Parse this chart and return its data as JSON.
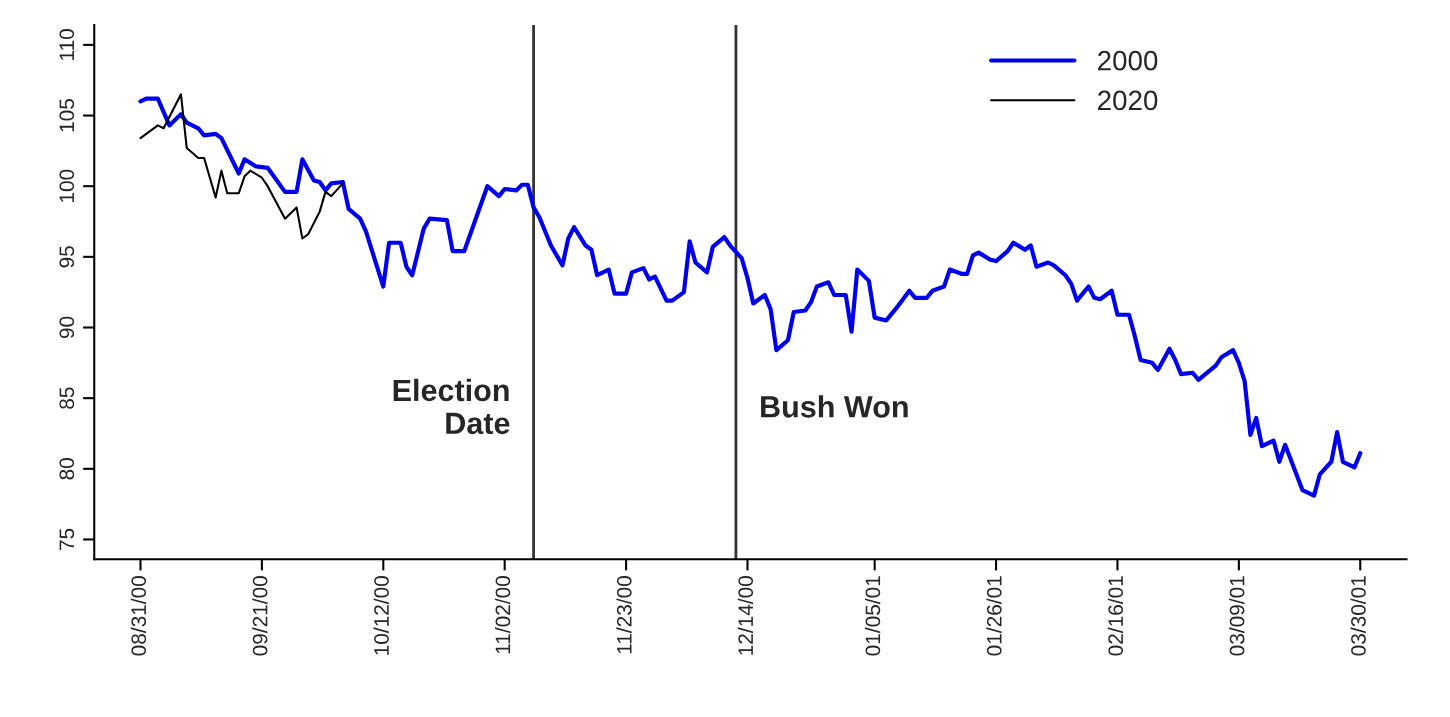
{
  "chart_data": {
    "type": "line",
    "series": [
      {
        "name": "2000",
        "color": "#0000ee",
        "x": [
          "2000-08-31",
          "2000-09-01",
          "2000-09-03",
          "2000-09-05",
          "2000-09-07",
          "2000-09-08",
          "2000-09-10",
          "2000-09-11",
          "2000-09-13",
          "2000-09-14",
          "2000-09-17",
          "2000-09-18",
          "2000-09-20",
          "2000-09-22",
          "2000-09-25",
          "2000-09-27",
          "2000-09-28",
          "2000-09-30",
          "2000-10-01",
          "2000-10-02",
          "2000-10-03",
          "2000-10-05",
          "2000-10-06",
          "2000-10-08",
          "2000-10-09",
          "2000-10-12",
          "2000-10-13",
          "2000-10-15",
          "2000-10-16",
          "2000-10-17",
          "2000-10-19",
          "2000-10-20",
          "2000-10-23",
          "2000-10-24",
          "2000-10-26",
          "2000-10-28",
          "2000-10-30",
          "2000-11-01",
          "2000-11-02",
          "2000-11-04",
          "2000-11-05",
          "2000-11-06",
          "2000-11-07",
          "2000-11-08",
          "2000-11-10",
          "2000-11-12",
          "2000-11-13",
          "2000-11-14",
          "2000-11-16",
          "2000-11-17",
          "2000-11-18",
          "2000-11-20",
          "2000-11-21",
          "2000-11-23",
          "2000-11-24",
          "2000-11-26",
          "2000-11-27",
          "2000-11-28",
          "2000-11-30",
          "2000-12-01",
          "2000-12-03",
          "2000-12-04",
          "2000-12-05",
          "2000-12-07",
          "2000-12-08",
          "2000-12-10",
          "2000-12-11",
          "2000-12-13",
          "2000-12-14",
          "2000-12-15",
          "2000-12-17",
          "2000-12-18",
          "2000-12-19",
          "2000-12-21",
          "2000-12-22",
          "2000-12-24",
          "2000-12-25",
          "2000-12-26",
          "2000-12-28",
          "2000-12-29",
          "2000-12-31",
          "2001-01-01",
          "2001-01-02",
          "2001-01-04",
          "2001-01-05",
          "2001-01-07",
          "2001-01-09",
          "2001-01-11",
          "2001-01-12",
          "2001-01-14",
          "2001-01-15",
          "2001-01-17",
          "2001-01-18",
          "2001-01-20",
          "2001-01-21",
          "2001-01-22",
          "2001-01-23",
          "2001-01-25",
          "2001-01-26",
          "2001-01-28",
          "2001-01-29",
          "2001-01-31",
          "2001-02-01",
          "2001-02-02",
          "2001-02-04",
          "2001-02-05",
          "2001-02-07",
          "2001-02-08",
          "2001-02-09",
          "2001-02-11",
          "2001-02-12",
          "2001-02-13",
          "2001-02-15",
          "2001-02-16",
          "2001-02-18",
          "2001-02-19",
          "2001-02-20",
          "2001-02-22",
          "2001-02-23",
          "2001-02-25",
          "2001-02-26",
          "2001-02-27",
          "2001-03-01",
          "2001-03-02",
          "2001-03-05",
          "2001-03-06",
          "2001-03-08",
          "2001-03-09",
          "2001-03-10",
          "2001-03-11",
          "2001-03-12",
          "2001-03-13",
          "2001-03-15",
          "2001-03-16",
          "2001-03-17",
          "2001-03-20",
          "2001-03-22",
          "2001-03-23",
          "2001-03-25",
          "2001-03-26",
          "2001-03-27",
          "2001-03-29",
          "2001-03-30"
        ],
        "values": [
          106.0,
          106.2,
          106.2,
          104.3,
          105.1,
          104.5,
          104.1,
          103.6,
          103.7,
          103.4,
          100.9,
          101.9,
          101.4,
          101.3,
          99.6,
          99.6,
          101.9,
          100.4,
          100.3,
          99.7,
          100.2,
          100.3,
          98.4,
          97.7,
          96.8,
          92.9,
          96.0,
          96.0,
          94.3,
          93.7,
          97.0,
          97.7,
          97.6,
          95.4,
          95.4,
          97.7,
          100.0,
          99.3,
          99.8,
          99.7,
          100.1,
          100.1,
          98.5,
          97.8,
          95.8,
          94.4,
          96.3,
          97.1,
          95.8,
          95.5,
          93.7,
          94.1,
          92.4,
          92.4,
          93.9,
          94.2,
          93.4,
          93.6,
          91.9,
          91.9,
          92.5,
          96.1,
          94.6,
          93.9,
          95.7,
          96.4,
          95.8,
          94.9,
          93.5,
          91.7,
          92.3,
          91.3,
          88.4,
          89.1,
          91.1,
          91.2,
          91.8,
          92.9,
          93.2,
          92.3,
          92.3,
          89.7,
          94.1,
          93.3,
          90.7,
          90.5,
          91.5,
          92.6,
          92.1,
          92.1,
          92.6,
          92.9,
          94.1,
          93.8,
          93.8,
          95.1,
          95.3,
          94.8,
          94.7,
          95.4,
          96.0,
          95.5,
          95.8,
          94.3,
          94.6,
          94.4,
          93.7,
          93.1,
          91.9,
          92.9,
          92.1,
          92.0,
          92.6,
          90.9,
          90.9,
          89.4,
          87.7,
          87.5,
          87.0,
          88.5,
          87.7,
          86.7,
          86.8,
          86.3,
          87.3,
          87.9,
          88.4,
          87.5,
          86.2,
          82.4,
          83.6,
          81.6,
          82.0,
          80.5,
          81.7,
          78.5,
          78.1,
          79.6,
          80.5,
          82.6,
          80.5,
          80.1,
          81.1
        ]
      },
      {
        "name": "2020",
        "color": "#000000",
        "x": [
          "2000-08-31",
          "2000-09-01",
          "2000-09-03",
          "2000-09-04",
          "2000-09-07",
          "2000-09-08",
          "2000-09-10",
          "2000-09-11",
          "2000-09-13",
          "2000-09-14",
          "2000-09-15",
          "2000-09-17",
          "2000-09-18",
          "2000-09-19",
          "2000-09-21",
          "2000-09-22",
          "2000-09-25",
          "2000-09-27",
          "2000-09-28",
          "2000-09-29",
          "2000-10-01",
          "2000-10-02",
          "2000-10-03",
          "2000-10-05"
        ],
        "values": [
          103.4,
          103.7,
          104.3,
          104.1,
          106.5,
          102.7,
          102.0,
          102.0,
          99.2,
          101.1,
          99.5,
          99.5,
          100.7,
          101.1,
          100.6,
          100.0,
          97.7,
          98.5,
          96.3,
          96.6,
          98.2,
          99.6,
          99.3,
          100.2
        ]
      }
    ],
    "xlim": [
      "2000-08-23",
      "2001-04-07"
    ],
    "xticks": [
      {
        "value": "2000-08-31",
        "label": "08/31/00"
      },
      {
        "value": "2000-09-21",
        "label": "09/21/00"
      },
      {
        "value": "2000-10-12",
        "label": "10/12/00"
      },
      {
        "value": "2000-11-02",
        "label": "11/02/00"
      },
      {
        "value": "2000-11-23",
        "label": "11/23/00"
      },
      {
        "value": "2000-12-14",
        "label": "12/14/00"
      },
      {
        "value": "2001-01-05",
        "label": "01/05/01"
      },
      {
        "value": "2001-01-26",
        "label": "01/26/01"
      },
      {
        "value": "2001-02-16",
        "label": "02/16/01"
      },
      {
        "value": "2001-03-09",
        "label": "03/09/01"
      },
      {
        "value": "2001-03-30",
        "label": "03/30/01"
      }
    ],
    "ylim": [
      73.6,
      111.4
    ],
    "yticks": [
      75,
      80,
      85,
      90,
      95,
      100,
      105,
      110
    ],
    "ref_lines": [
      {
        "axis": "x",
        "value": "2000-11-07",
        "label": "Election\nDate",
        "color": "#333333"
      },
      {
        "axis": "x",
        "value": "2000-12-12",
        "label": "Bush Won",
        "color": "#333333"
      }
    ],
    "legend": "top right",
    "grid": false
  }
}
